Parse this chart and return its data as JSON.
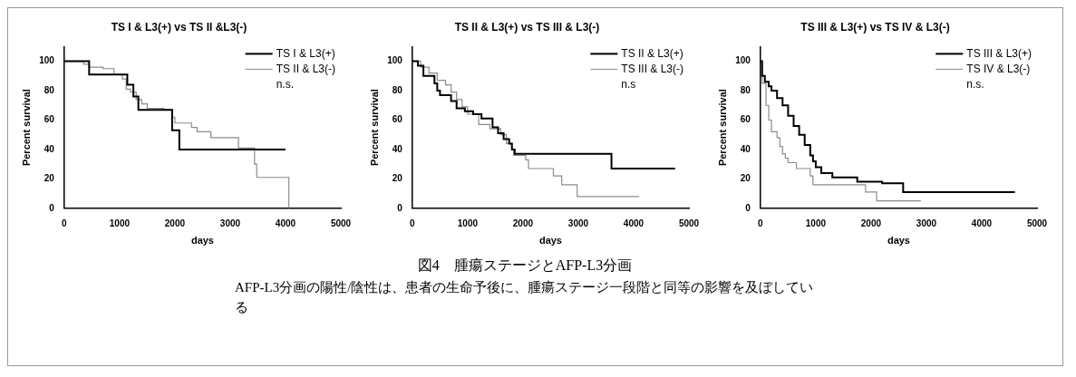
{
  "chart_data": [
    {
      "type": "step",
      "title": "TS I & L3(+) vs TS II &L3(-)",
      "xlabel": "days",
      "ylabel": "Percent survival",
      "xlim": [
        0,
        5000
      ],
      "xticks": [
        0,
        1000,
        2000,
        3000,
        4000,
        5000
      ],
      "ylim": [
        0,
        110
      ],
      "yticks": [
        0,
        20,
        40,
        60,
        80,
        100
      ],
      "grid": false,
      "legend": "top right",
      "annotations": [
        "n.s."
      ],
      "series": [
        {
          "name": "TS I & L3(+)",
          "color": "#000000",
          "x": [
            0,
            450,
            1140,
            1250,
            1340,
            1950,
            2080,
            4000
          ],
          "values": [
            100,
            91,
            84,
            76,
            67,
            53,
            40,
            40
          ]
        },
        {
          "name": "TS II & L3(-)",
          "color": "#8c8c8c",
          "x": [
            0,
            350,
            450,
            700,
            900,
            1050,
            1120,
            1200,
            1300,
            1400,
            1500,
            1800,
            1950,
            2000,
            2300,
            2400,
            2650,
            3150,
            3440,
            3480,
            4060
          ],
          "values": [
            100,
            98,
            96,
            95,
            91,
            88,
            81,
            79,
            74,
            71,
            68,
            67,
            62,
            58,
            55,
            52,
            48,
            41,
            30,
            21,
            0
          ]
        }
      ]
    },
    {
      "type": "step",
      "title": "TS II & L3(+) vs TS III & L3(-)",
      "xlabel": "days",
      "ylabel": "Percent survival",
      "xlim": [
        0,
        5000
      ],
      "xticks": [
        0,
        1000,
        2000,
        3000,
        4000,
        5000
      ],
      "ylim": [
        0,
        110
      ],
      "yticks": [
        0,
        20,
        40,
        60,
        80,
        100
      ],
      "grid": false,
      "legend": "top right",
      "annotations": [
        "n.s"
      ],
      "series": [
        {
          "name": "TS II & L3(+)",
          "color": "#000000",
          "x": [
            0,
            100,
            200,
            400,
            450,
            500,
            700,
            800,
            950,
            1100,
            1250,
            1450,
            1550,
            1650,
            1750,
            1800,
            1850,
            3600,
            4750
          ],
          "values": [
            100,
            97,
            90,
            85,
            80,
            77,
            73,
            68,
            66,
            64,
            61,
            55,
            51,
            47,
            44,
            40,
            37,
            27,
            27
          ]
        },
        {
          "name": "TS III & L3(-)",
          "color": "#8c8c8c",
          "x": [
            0,
            150,
            300,
            450,
            600,
            700,
            800,
            900,
            1000,
            1200,
            1400,
            1600,
            1700,
            1800,
            1830,
            2050,
            2100,
            2550,
            2700,
            2980,
            4100
          ],
          "values": [
            100,
            96,
            92,
            87,
            84,
            79,
            74,
            69,
            64,
            57,
            54,
            50,
            44,
            40,
            36,
            33,
            27,
            22,
            16,
            8,
            8
          ]
        }
      ]
    },
    {
      "type": "step",
      "title": "TS III & L3(+) vs TS IV & L3(-)",
      "xlabel": "days",
      "ylabel": "Percent survival",
      "xlim": [
        0,
        5000
      ],
      "xticks": [
        0,
        1000,
        2000,
        3000,
        4000,
        5000
      ],
      "ylim": [
        0,
        110
      ],
      "yticks": [
        0,
        20,
        40,
        60,
        80,
        100
      ],
      "grid": false,
      "legend": "top right",
      "annotations": [
        "n.s."
      ],
      "series": [
        {
          "name": "TS III & L3(+)",
          "color": "#000000",
          "x": [
            0,
            30,
            80,
            150,
            200,
            300,
            400,
            500,
            600,
            700,
            800,
            900,
            950,
            1000,
            1100,
            1300,
            1750,
            2200,
            2580,
            4600
          ],
          "values": [
            100,
            90,
            86,
            83,
            80,
            75,
            70,
            63,
            56,
            50,
            43,
            36,
            32,
            28,
            24,
            21,
            18,
            17,
            11,
            11
          ]
        },
        {
          "name": "TS IV & L3(-)",
          "color": "#8c8c8c",
          "x": [
            0,
            30,
            100,
            150,
            200,
            300,
            350,
            400,
            450,
            500,
            650,
            900,
            950,
            1900,
            2100,
            2900
          ],
          "values": [
            100,
            85,
            70,
            60,
            52,
            48,
            42,
            37,
            34,
            31,
            27,
            22,
            16,
            11,
            5,
            5
          ]
        }
      ]
    },
    {
      "type": "other",
      "title": "図4　腫瘍ステージとAFP-L3分画",
      "annotations": [
        "AFP-L3分画の陽性/陰性は、患者の生命予後に、腫瘍ステージ一段階と同等の影響を及ぼしている"
      ]
    }
  ]
}
